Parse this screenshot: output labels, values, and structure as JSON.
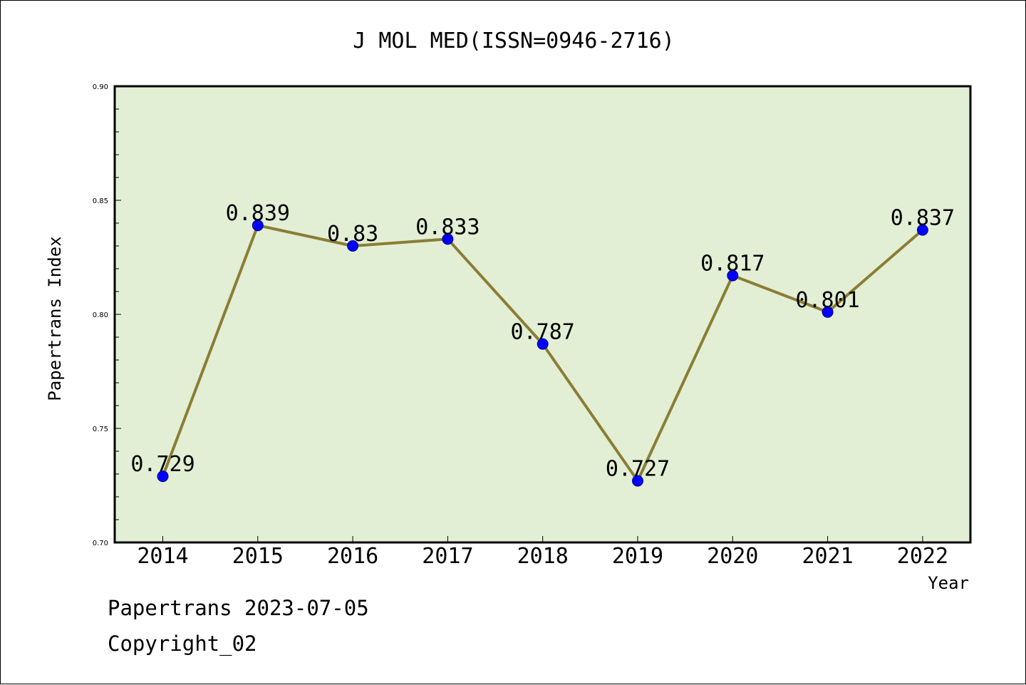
{
  "chart_data": {
    "type": "line",
    "title": "J MOL MED(ISSN=0946-2716)",
    "xlabel": "Year",
    "ylabel": "Papertrans Index",
    "categories": [
      "2014",
      "2015",
      "2016",
      "2017",
      "2018",
      "2019",
      "2020",
      "2021",
      "2022"
    ],
    "series": [
      {
        "values": [
          0.729,
          0.839,
          0.83,
          0.833,
          0.787,
          0.727,
          0.817,
          0.801,
          0.837
        ],
        "labels": [
          "0.729",
          "0.839",
          "0.83",
          "0.833",
          "0.787",
          "0.727",
          "0.817",
          "0.801",
          "0.837"
        ]
      }
    ],
    "ylim": [
      0.7,
      0.9
    ],
    "y_ticks": [
      "0.70",
      "0.75",
      "0.80",
      "0.85",
      "0.90"
    ],
    "grid": false,
    "colors": {
      "plot_background": "#e2efd5",
      "line": "#8b7d35",
      "marker": "#0000ff"
    }
  },
  "footer": {
    "line1": "Papertrans 2023-07-05",
    "line2": "Copyright_02"
  }
}
